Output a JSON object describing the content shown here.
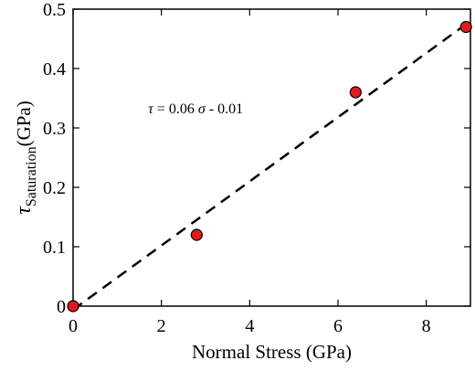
{
  "chart_data": {
    "type": "scatter",
    "xlabel": "Normal Stress (GPa)",
    "ylabel": {
      "symbol": "τ",
      "subscript": "Saturation",
      "unit": "(GPa)"
    },
    "xlim": [
      0,
      9
    ],
    "ylim": [
      0,
      0.5
    ],
    "x_ticks": [
      0,
      2,
      4,
      6,
      8
    ],
    "y_ticks": [
      0,
      0.1,
      0.2,
      0.3,
      0.4,
      0.5
    ],
    "x_tick_labels": [
      "0",
      "2",
      "4",
      "6",
      "8"
    ],
    "y_tick_labels": [
      "0",
      "0.1",
      "0.2",
      "0.3",
      "0.4",
      "0.5"
    ],
    "grid": false,
    "points": {
      "x": [
        0,
        2.8,
        6.4,
        8.9
      ],
      "y": [
        0,
        0.12,
        0.36,
        0.47
      ]
    },
    "fit_line": {
      "x": [
        0,
        9
      ],
      "y": [
        -0.006,
        0.48
      ]
    },
    "annotation": {
      "tau": "τ",
      "mid": " = 0.06 ",
      "sigma": "σ",
      "tail": " - 0.01",
      "x": 1.7,
      "y": 0.325
    },
    "colors": {
      "point_fill": "#e31a1c",
      "point_stroke": "#000000",
      "line": "#000000",
      "axis": "#000000"
    }
  }
}
